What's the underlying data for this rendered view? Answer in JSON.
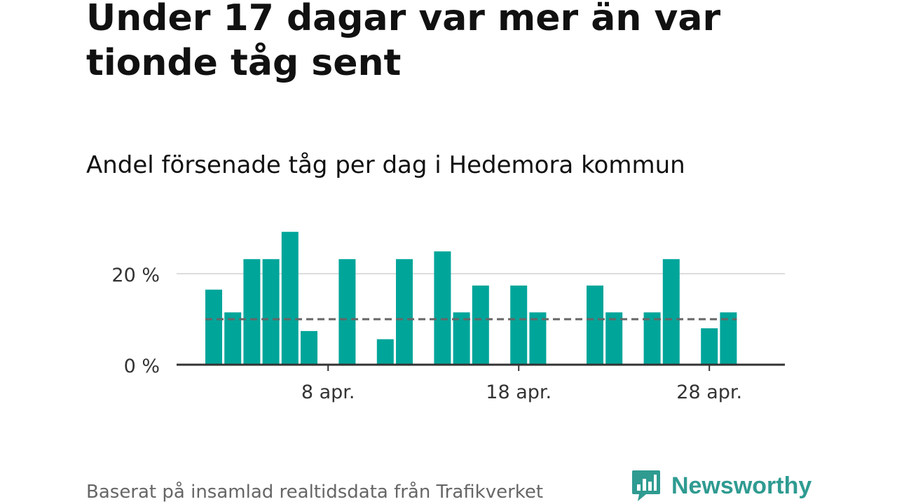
{
  "title": "Under 17 dagar var mer än var tionde tåg sent",
  "subtitle": "Andel försenade tåg per dag i Hedemora kommun",
  "source": "Baserat på insamlad realtidsdata från Trafikverket",
  "brand": "Newsworthy",
  "colors": {
    "bar": "#00a59a",
    "average_line": "#666666",
    "grid": "#dddddd",
    "axis": "#333333",
    "brand": "#2f9b91"
  },
  "chart_data": {
    "type": "bar",
    "title": "Andel försenade tåg per dag i Hedemora kommun",
    "xlabel": "",
    "ylabel": "",
    "unit": "%",
    "x": [
      "2025-04-02",
      "2025-04-03",
      "2025-04-04",
      "2025-04-05",
      "2025-04-06",
      "2025-04-07",
      "2025-04-08",
      "2025-04-09",
      "2025-04-10",
      "2025-04-11",
      "2025-04-12",
      "2025-04-13",
      "2025-04-14",
      "2025-04-15",
      "2025-04-16",
      "2025-04-17",
      "2025-04-18",
      "2025-04-19",
      "2025-04-20",
      "2025-04-21",
      "2025-04-22",
      "2025-04-23",
      "2025-04-24",
      "2025-04-25",
      "2025-04-26",
      "2025-04-27",
      "2025-04-28",
      "2025-04-29"
    ],
    "values": [
      16.5,
      11.5,
      23.2,
      23.2,
      29.2,
      7.4,
      0,
      23.2,
      0,
      5.6,
      23.2,
      0,
      24.9,
      11.5,
      17.4,
      0,
      17.4,
      11.5,
      0,
      0,
      17.4,
      11.5,
      0,
      11.5,
      23.2,
      0,
      8.0,
      11.5
    ],
    "average": 10,
    "ylim": [
      0,
      30
    ],
    "yticks": [
      0,
      20
    ],
    "ytick_labels": [
      "0 %",
      "20 %"
    ],
    "xticks": [
      "2025-04-08",
      "2025-04-18",
      "2025-04-28"
    ],
    "xtick_labels": [
      "8 apr.",
      "18 apr.",
      "28 apr."
    ],
    "grid": true,
    "legend": "none"
  }
}
